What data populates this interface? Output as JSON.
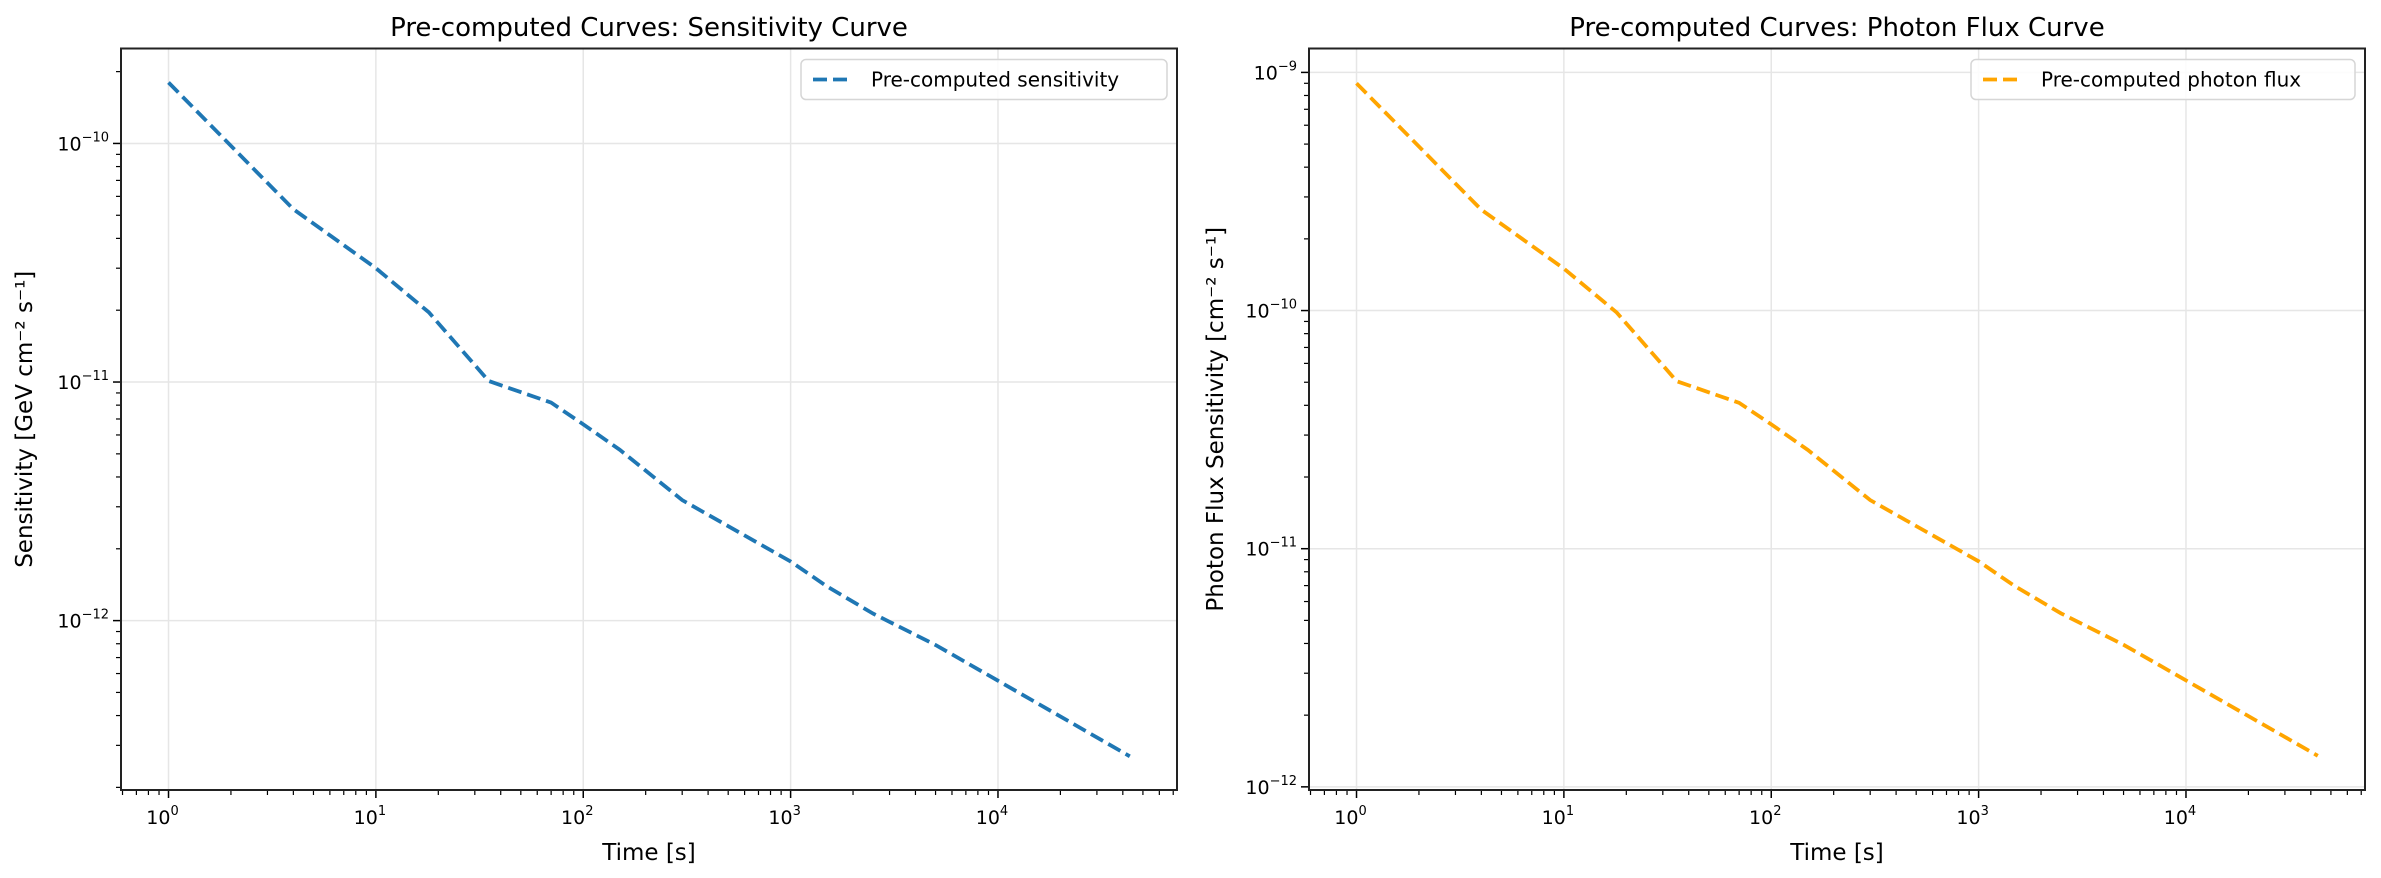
{
  "chart_data": [
    {
      "type": "line",
      "title": "Pre-computed Curves: Sensitivity Curve",
      "xlabel": "Time [s]",
      "ylabel": "Sensitivity [GeV cm⁻² s⁻¹]",
      "xscale": "log",
      "yscale": "log",
      "xlim": [
        0.59,
        73000
      ],
      "ylim": [
        1.95e-13,
        2.5e-10
      ],
      "xticks": [
        1,
        10,
        100,
        1000,
        10000
      ],
      "xtick_labels": [
        {
          "base": "10",
          "exp": "0"
        },
        {
          "base": "10",
          "exp": "1"
        },
        {
          "base": "10",
          "exp": "2"
        },
        {
          "base": "10",
          "exp": "3"
        },
        {
          "base": "10",
          "exp": "4"
        }
      ],
      "yticks": [
        1e-10,
        1e-11,
        1e-12
      ],
      "ytick_labels": [
        {
          "base": "10",
          "exp": "−10"
        },
        {
          "base": "10",
          "exp": "−11"
        },
        {
          "base": "10",
          "exp": "−12"
        }
      ],
      "grid": true,
      "legend_position": "top-right",
      "series": [
        {
          "name": "Pre-computed sensitivity",
          "color": "#1f77b4",
          "linestyle": "dashed",
          "x": [
            1,
            4,
            10,
            18,
            35,
            70,
            100,
            150,
            300,
            1000,
            1500,
            2500,
            5000,
            10000,
            43200
          ],
          "y": [
            1.8e-10,
            5.3e-11,
            3e-11,
            1.96e-11,
            1.01e-11,
            8.2e-12,
            6.65e-12,
            5.2e-12,
            3.2e-12,
            1.77e-12,
            1.39e-12,
            1.07e-12,
            7.9e-13,
            5.6e-13,
            2.7e-13
          ]
        }
      ]
    },
    {
      "type": "line",
      "title": "Pre-computed Curves: Photon Flux Curve",
      "xlabel": "Time [s]",
      "ylabel": "Photon Flux Sensitivity [cm⁻² s⁻¹]",
      "xscale": "log",
      "yscale": "log",
      "xlim": [
        0.59,
        73000
      ],
      "ylim": [
        9.7e-13,
        1.26e-09
      ],
      "xticks": [
        1,
        10,
        100,
        1000,
        10000
      ],
      "xtick_labels": [
        {
          "base": "10",
          "exp": "0"
        },
        {
          "base": "10",
          "exp": "1"
        },
        {
          "base": "10",
          "exp": "2"
        },
        {
          "base": "10",
          "exp": "3"
        },
        {
          "base": "10",
          "exp": "4"
        }
      ],
      "yticks": [
        1e-09,
        1e-10,
        1e-11,
        1e-12
      ],
      "ytick_labels": [
        {
          "base": "10",
          "exp": "−9"
        },
        {
          "base": "10",
          "exp": "−10"
        },
        {
          "base": "10",
          "exp": "−11"
        },
        {
          "base": "10",
          "exp": "−12"
        }
      ],
      "grid": true,
      "legend_position": "top-right",
      "series": [
        {
          "name": "Pre-computed photon flux",
          "color": "#ffa500",
          "linestyle": "dashed",
          "x": [
            1,
            4,
            10,
            18,
            35,
            70,
            100,
            150,
            300,
            1000,
            1500,
            2500,
            5000,
            10000,
            43200
          ],
          "y": [
            9e-10,
            2.65e-10,
            1.5e-10,
            9.8e-11,
            5.05e-11,
            4.1e-11,
            3.33e-11,
            2.6e-11,
            1.6e-11,
            8.85e-12,
            6.95e-12,
            5.35e-12,
            3.95e-12,
            2.8e-12,
            1.35e-12
          ]
        }
      ]
    }
  ]
}
